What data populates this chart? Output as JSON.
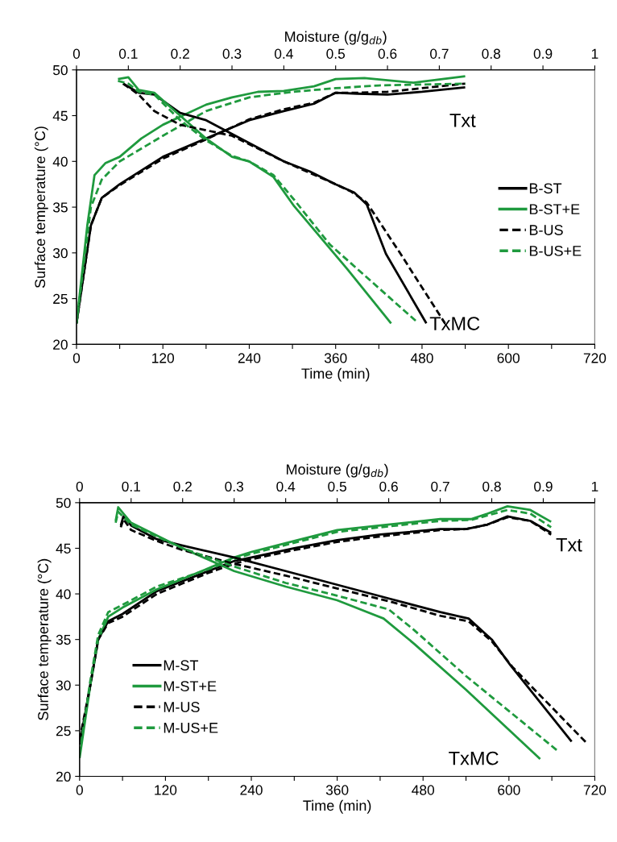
{
  "chart_data": [
    {
      "type": "line",
      "xlabel": "Time (min)",
      "ylabel": "Surface temperature (°C)",
      "x2label": "Moisture (g/g$_{db}$)",
      "xlim": [
        0,
        720
      ],
      "xticks": [
        0,
        {
          "value": 60,
          "label": null
        },
        120,
        {
          "value": 180,
          "label": null
        },
        240,
        {
          "value": 300,
          "label": null
        },
        360,
        {
          "value": 420,
          "label": null
        },
        480,
        {
          "value": 540,
          "label": null
        },
        600,
        {
          "value": 660,
          "label": null
        },
        720
      ],
      "x2lim": [
        0,
        1
      ],
      "x2ticks": [
        0,
        0.1,
        0.2,
        0.3,
        0.4,
        0.5,
        0.6,
        0.7,
        0.8,
        0.9,
        1
      ],
      "ylim": [
        20,
        50
      ],
      "yticks": [
        20,
        25,
        30,
        35,
        40,
        45,
        50
      ],
      "grid": false,
      "legend": "right",
      "annotations": [
        "Txt",
        "TxMC"
      ],
      "series": [
        {
          "name": "B-ST",
          "color": "#000000",
          "line_style": "solid",
          "x": [
            0,
            20,
            35,
            60,
            120,
            180,
            240,
            288,
            330,
            360,
            390,
            432,
            480,
            540
          ],
          "values": [
            22.3,
            33,
            36,
            37.5,
            40.5,
            42.5,
            44.5,
            45.5,
            46.3,
            47.5,
            47.4,
            47.3,
            47.6,
            48.1
          ]
        },
        {
          "name": "B-ST+E",
          "color": "#1f9a3e",
          "line_style": "solid",
          "x": [
            0,
            15,
            25,
            40,
            60,
            90,
            120,
            180,
            216,
            252,
            288,
            330,
            360,
            400,
            468,
            540
          ],
          "values": [
            22.3,
            33,
            38.5,
            39.8,
            40.5,
            42.5,
            44,
            46.2,
            47,
            47.6,
            47.7,
            48.2,
            49,
            49.1,
            48.6,
            49.3
          ]
        },
        {
          "name": "B-US",
          "color": "#000000",
          "line_style": "dashed",
          "x": [
            0,
            20,
            35,
            60,
            120,
            180,
            240,
            288,
            330,
            360,
            390,
            432,
            480,
            540
          ],
          "values": [
            22.3,
            33,
            36,
            37.4,
            40.3,
            42.4,
            44.6,
            45.7,
            46.4,
            47.5,
            47.5,
            47.6,
            48,
            48.5
          ]
        },
        {
          "name": "B-US+E",
          "color": "#1f9a3e",
          "line_style": "dashed",
          "x": [
            0,
            20,
            35,
            60,
            120,
            180,
            240,
            300,
            360,
            420,
            480,
            540
          ],
          "values": [
            22.3,
            35,
            38,
            40,
            42.8,
            45.5,
            47,
            47.6,
            48,
            48.3,
            48.4,
            48.5
          ]
        },
        {
          "axis": "x2",
          "color": "#000000",
          "line_style": "solid",
          "x": [
            0.09,
            0.12,
            0.15,
            0.2,
            0.25,
            0.3,
            0.35,
            0.4,
            0.45,
            0.5,
            0.536,
            0.56,
            0.597,
            0.675
          ],
          "values": [
            48.5,
            47.5,
            47.3,
            45.3,
            44.5,
            43,
            41.5,
            40,
            38.9,
            37.5,
            36.6,
            35.3,
            29.9,
            22.3
          ]
        },
        {
          "axis": "x2",
          "color": "#1f9a3e",
          "line_style": "solid",
          "x": [
            0.08,
            0.1,
            0.12,
            0.15,
            0.2,
            0.25,
            0.3,
            0.333,
            0.38,
            0.42,
            0.523,
            0.607
          ],
          "values": [
            49,
            49.2,
            47.8,
            47.5,
            45,
            42.5,
            40.5,
            40,
            38.3,
            35.1,
            28.2,
            22.3
          ]
        },
        {
          "axis": "x2",
          "color": "#000000",
          "line_style": "dashed",
          "x": [
            0.09,
            0.12,
            0.15,
            0.2,
            0.3,
            0.4,
            0.5,
            0.53,
            0.56,
            0.624,
            0.711
          ],
          "values": [
            48.5,
            47.3,
            45.5,
            44,
            42.8,
            40,
            37.5,
            36.7,
            35.5,
            30,
            22.3
          ]
        },
        {
          "axis": "x2",
          "color": "#1f9a3e",
          "line_style": "dashed",
          "x": [
            0.08,
            0.1,
            0.12,
            0.15,
            0.2,
            0.25,
            0.3,
            0.333,
            0.38,
            0.42,
            0.489,
            0.656
          ],
          "values": [
            48.8,
            48.5,
            47.6,
            47.3,
            44.5,
            42.3,
            40.6,
            40,
            38.5,
            35.8,
            30.9,
            22.5
          ]
        }
      ]
    },
    {
      "type": "line",
      "xlabel": "Time (min)",
      "ylabel": "Surface temperature (°C)",
      "x2label": "Moisture (g/g$_{db}$)",
      "xlim": [
        0,
        720
      ],
      "xticks": [
        0,
        {
          "value": 60,
          "label": null
        },
        120,
        {
          "value": 180,
          "label": null
        },
        240,
        {
          "value": 300,
          "label": null
        },
        360,
        {
          "value": 420,
          "label": null
        },
        480,
        {
          "value": 540,
          "label": null
        },
        600,
        {
          "value": 660,
          "label": null
        },
        720
      ],
      "x2lim": [
        0,
        1
      ],
      "x2ticks": [
        0,
        0.1,
        0.2,
        0.3,
        0.4,
        0.5,
        0.6,
        0.7,
        0.8,
        0.9,
        1
      ],
      "ylim": [
        20,
        50
      ],
      "yticks": [
        20,
        25,
        30,
        35,
        40,
        45,
        50
      ],
      "grid": false,
      "legend": "bottom left",
      "annotations": [
        "Txt",
        "TxMC"
      ],
      "series": [
        {
          "name": "M-ST",
          "color": "#000000",
          "line_style": "solid",
          "x": [
            0,
            15,
            26,
            40,
            60,
            108,
            180,
            216,
            240,
            300,
            360,
            420,
            504,
            540,
            570,
            598,
            630,
            659
          ],
          "values": [
            23.5,
            30,
            35,
            37,
            37.8,
            40.3,
            42.5,
            43.6,
            44,
            45,
            45.9,
            46.5,
            47.1,
            47.1,
            47.6,
            48.5,
            48,
            46.7
          ]
        },
        {
          "name": "M-ST+E",
          "color": "#1f9a3e",
          "line_style": "solid",
          "x": [
            0,
            15,
            26,
            40,
            60,
            108,
            180,
            216,
            240,
            300,
            360,
            420,
            504,
            547,
            570,
            598,
            630,
            659
          ],
          "values": [
            22,
            30,
            35,
            37.5,
            38.5,
            40.5,
            42.8,
            44,
            44.6,
            45.8,
            47,
            47.5,
            48.2,
            48.2,
            48.8,
            49.6,
            49.2,
            47.9
          ]
        },
        {
          "name": "M-US",
          "color": "#000000",
          "line_style": "dashed",
          "x": [
            0,
            15,
            26,
            40,
            60,
            108,
            180,
            216,
            240,
            300,
            360,
            420,
            504,
            540,
            570,
            598,
            630,
            659
          ],
          "values": [
            24,
            30,
            35,
            36.8,
            37.5,
            40,
            42.3,
            43.3,
            43.8,
            44.8,
            45.7,
            46.3,
            47,
            47.1,
            47.6,
            48.4,
            48,
            46.5
          ]
        },
        {
          "name": "M-US+E",
          "color": "#1f9a3e",
          "line_style": "dashed",
          "x": [
            0,
            15,
            26,
            40,
            60,
            108,
            180,
            216,
            240,
            300,
            360,
            420,
            504,
            547,
            570,
            598,
            630,
            659
          ],
          "values": [
            22.5,
            30.5,
            35.5,
            38,
            38.8,
            40.8,
            42.7,
            43.8,
            44.4,
            45.6,
            46.8,
            47.3,
            48,
            48.1,
            48.6,
            49.2,
            48.8,
            47.3
          ]
        },
        {
          "axis": "x2",
          "color": "#000000",
          "line_style": "solid",
          "x": [
            0.08,
            0.085,
            0.1,
            0.15,
            0.2,
            0.3,
            0.4,
            0.5,
            0.6,
            0.7,
            0.755,
            0.8,
            0.836,
            0.955
          ],
          "values": [
            47.5,
            48.5,
            47.5,
            46,
            45.3,
            44,
            42.5,
            41,
            39.5,
            38,
            37.3,
            35,
            32.2,
            23.8
          ]
        },
        {
          "axis": "x2",
          "color": "#1f9a3e",
          "line_style": "solid",
          "x": [
            0.07,
            0.075,
            0.1,
            0.2,
            0.3,
            0.4,
            0.5,
            0.59,
            0.65,
            0.75,
            0.894
          ],
          "values": [
            48,
            49.5,
            47.8,
            45,
            42.5,
            40.8,
            39.3,
            37.3,
            34.5,
            29.5,
            21.9
          ]
        },
        {
          "axis": "x2",
          "color": "#000000",
          "line_style": "dashed",
          "x": [
            0.08,
            0.085,
            0.1,
            0.15,
            0.2,
            0.3,
            0.4,
            0.5,
            0.6,
            0.7,
            0.755,
            0.8,
            0.84,
            0.985
          ],
          "values": [
            47.3,
            48.2,
            47,
            45.8,
            44.8,
            43.3,
            42,
            40.6,
            39.2,
            37.6,
            37,
            34.8,
            32,
            23.6
          ]
        },
        {
          "axis": "x2",
          "color": "#1f9a3e",
          "line_style": "dashed",
          "x": [
            0.07,
            0.075,
            0.1,
            0.2,
            0.3,
            0.4,
            0.5,
            0.6,
            0.65,
            0.75,
            0.93
          ],
          "values": [
            47.8,
            49,
            47.6,
            45,
            43,
            41.2,
            39.8,
            38.3,
            36,
            31,
            22.7
          ]
        }
      ]
    }
  ]
}
